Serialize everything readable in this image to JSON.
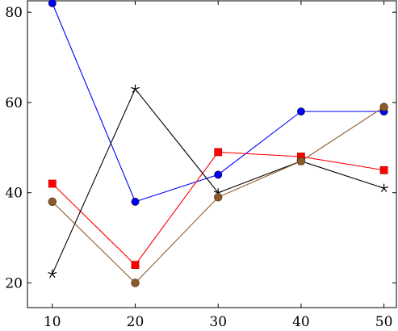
{
  "chart_data": {
    "type": "line",
    "title": "",
    "xlabel": "",
    "ylabel": "",
    "x": [
      10,
      20,
      30,
      40,
      50
    ],
    "xlim": [
      7,
      51.5
    ],
    "ylim": [
      14,
      82
    ],
    "x_ticks": [
      10,
      20,
      30,
      40,
      50
    ],
    "y_ticks": [
      20,
      40,
      60,
      80
    ],
    "grid": false,
    "legend": "none",
    "series": [
      {
        "color": "#0000ff",
        "marker": "circle",
        "values": [
          82,
          38,
          44,
          58,
          58
        ]
      },
      {
        "color": "#ff0000",
        "marker": "square",
        "values": [
          42,
          24,
          49,
          48,
          45
        ]
      },
      {
        "color": "#000000",
        "marker": "star",
        "values": [
          22,
          63,
          40,
          47,
          41
        ]
      },
      {
        "color": "#8b5a2b",
        "marker": "circle-brown",
        "values": [
          38,
          20,
          39,
          47,
          59
        ]
      }
    ]
  }
}
